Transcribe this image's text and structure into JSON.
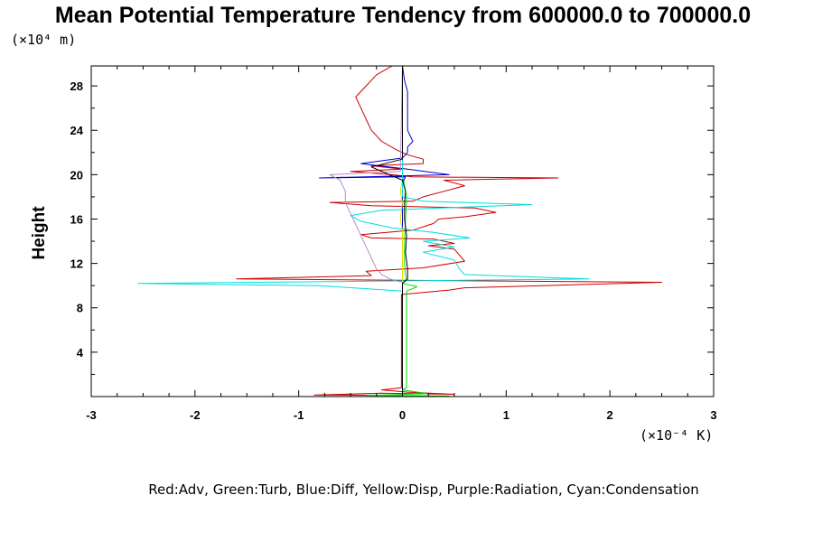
{
  "colors": {
    "advection": "#cc0000",
    "turbulence": "#00dd00",
    "diffusion": "#0000cc",
    "dissipation": "#dddd00",
    "radiation": "#bb88cc",
    "condensation": "#00dddd",
    "total": "#000000"
  },
  "chart_data": {
    "type": "line",
    "title": "Mean Potential Temperature Tendency from 600000.0 to 700000.0",
    "ylabel": "Height",
    "xlabel": "",
    "y_scale_label": "(×10⁴ m)",
    "x_scale_label": "(×10⁻⁴ K)",
    "legend_text": "Red:Adv, Green:Turb, Blue:Diff, Yellow:Disp, Purple:Radiation, Cyan:Condensation",
    "xlim": [
      -3,
      3
    ],
    "ylim": [
      0,
      29.8
    ],
    "x_ticks": [
      -3,
      -2,
      -1,
      0,
      1,
      2,
      3
    ],
    "x_tick_labels": [
      "-3",
      "-2",
      "-1",
      "0",
      "1",
      "2",
      "3"
    ],
    "y_ticks": [
      4,
      8,
      12,
      16,
      20,
      24,
      28
    ],
    "y_tick_labels": [
      "4",
      "8",
      "12",
      "16",
      "20",
      "24",
      "28"
    ],
    "grid": false,
    "series": [
      {
        "name": "Adv",
        "color_key": "advection",
        "points": [
          [
            0,
            0.1
          ],
          [
            -0.85,
            0.15
          ],
          [
            -0.2,
            0.3
          ],
          [
            0.5,
            0.2
          ],
          [
            0.05,
            0.4
          ],
          [
            -0.2,
            0.6
          ],
          [
            -0.01,
            0.8
          ],
          [
            -0.01,
            8.5
          ],
          [
            -0.01,
            9.2
          ],
          [
            0.45,
            9.6
          ],
          [
            0.6,
            9.8
          ],
          [
            2.5,
            10.3
          ],
          [
            -0.3,
            10.5
          ],
          [
            -1.6,
            10.6
          ],
          [
            -0.3,
            10.9
          ],
          [
            -0.35,
            11.3
          ],
          [
            0.2,
            11.6
          ],
          [
            0.6,
            12.2
          ],
          [
            0.5,
            13.3
          ],
          [
            0.25,
            13.6
          ],
          [
            0.5,
            13.8
          ],
          [
            0.3,
            14.2
          ],
          [
            -0.3,
            14.3
          ],
          [
            -0.4,
            14.6
          ],
          [
            0.1,
            15.0
          ],
          [
            0.3,
            15.6
          ],
          [
            0.35,
            16.0
          ],
          [
            0.6,
            16.2
          ],
          [
            0.9,
            16.6
          ],
          [
            0.7,
            17.0
          ],
          [
            -0.3,
            17.2
          ],
          [
            -0.7,
            17.5
          ],
          [
            0.1,
            17.6
          ],
          [
            0.2,
            18.0
          ],
          [
            0.4,
            18.5
          ],
          [
            0.6,
            19.0
          ],
          [
            0.4,
            19.5
          ],
          [
            1.5,
            19.7
          ],
          [
            0.1,
            19.8
          ],
          [
            -0.1,
            20.0
          ],
          [
            -0.5,
            20.3
          ],
          [
            0.0,
            20.5
          ],
          [
            -0.3,
            20.8
          ],
          [
            0.2,
            21.0
          ],
          [
            0.2,
            21.4
          ],
          [
            0.05,
            21.8
          ],
          [
            -0.05,
            22.2
          ],
          [
            -0.2,
            23.0
          ],
          [
            -0.3,
            24.0
          ],
          [
            -0.35,
            25.0
          ],
          [
            -0.4,
            26.0
          ],
          [
            -0.45,
            27.0
          ],
          [
            -0.35,
            28.0
          ],
          [
            -0.25,
            29.0
          ],
          [
            -0.1,
            29.8
          ]
        ]
      },
      {
        "name": "Turb",
        "color_key": "turbulence",
        "points": [
          [
            0.45,
            0.05
          ],
          [
            -0.35,
            0.1
          ],
          [
            0.25,
            0.25
          ],
          [
            0.0,
            0.6
          ],
          [
            0.04,
            0.8
          ],
          [
            0.04,
            8.5
          ],
          [
            0.04,
            9.5
          ],
          [
            0.14,
            9.9
          ],
          [
            0.0,
            10.2
          ],
          [
            0.04,
            10.5
          ],
          [
            0.03,
            11.0
          ],
          [
            0.02,
            12.0
          ],
          [
            0.02,
            14.0
          ],
          [
            0.03,
            16.0
          ],
          [
            0.04,
            18.0
          ],
          [
            0.0,
            20.0
          ],
          [
            0.0,
            29.8
          ]
        ]
      },
      {
        "name": "Diff",
        "color_key": "diffusion",
        "points": [
          [
            0.0,
            0.05
          ],
          [
            0.0,
            19.2
          ],
          [
            0.03,
            19.8
          ],
          [
            -0.8,
            19.7
          ],
          [
            0.45,
            20.0
          ],
          [
            0.05,
            20.5
          ],
          [
            -0.4,
            21.0
          ],
          [
            0.0,
            21.5
          ],
          [
            0.05,
            22.0
          ],
          [
            0.05,
            22.5
          ],
          [
            0.1,
            23.0
          ],
          [
            0.05,
            24.0
          ],
          [
            0.05,
            26.0
          ],
          [
            0.05,
            27.5
          ],
          [
            0.02,
            28.5
          ],
          [
            0.0,
            29.8
          ]
        ]
      },
      {
        "name": "Disp",
        "color_key": "dissipation",
        "points": [
          [
            0.0,
            0.05
          ],
          [
            0.0,
            15.0
          ],
          [
            -0.02,
            16.0
          ],
          [
            0.0,
            17.5
          ],
          [
            -0.02,
            18.5
          ],
          [
            0.0,
            19.5
          ],
          [
            0.0,
            29.8
          ]
        ]
      },
      {
        "name": "Radiation",
        "color_key": "radiation",
        "points": [
          [
            0.0,
            0.05
          ],
          [
            0.0,
            10.3
          ],
          [
            -0.12,
            10.6
          ],
          [
            -0.2,
            11.0
          ],
          [
            -0.25,
            11.5
          ],
          [
            -0.3,
            12.5
          ],
          [
            -0.35,
            13.5
          ],
          [
            -0.4,
            14.5
          ],
          [
            -0.45,
            15.5
          ],
          [
            -0.5,
            16.5
          ],
          [
            -0.55,
            17.5
          ],
          [
            -0.55,
            18.5
          ],
          [
            -0.6,
            19.5
          ],
          [
            -0.7,
            20.0
          ],
          [
            -0.02,
            20.3
          ],
          [
            0.0,
            29.8
          ]
        ]
      },
      {
        "name": "Condensation",
        "color_key": "condensation",
        "points": [
          [
            0.0,
            0.05
          ],
          [
            0.0,
            8.5
          ],
          [
            0.0,
            9.5
          ],
          [
            -0.8,
            10.0
          ],
          [
            -2.55,
            10.2
          ],
          [
            -0.3,
            10.4
          ],
          [
            1.8,
            10.6
          ],
          [
            0.6,
            11.0
          ],
          [
            0.55,
            11.5
          ],
          [
            0.5,
            12.3
          ],
          [
            0.2,
            13.0
          ],
          [
            0.5,
            13.5
          ],
          [
            0.2,
            14.0
          ],
          [
            0.65,
            14.3
          ],
          [
            0.3,
            14.8
          ],
          [
            -0.1,
            15.2
          ],
          [
            -0.4,
            15.8
          ],
          [
            -0.5,
            16.3
          ],
          [
            -0.2,
            16.8
          ],
          [
            1.25,
            17.3
          ],
          [
            0.2,
            17.6
          ],
          [
            0.0,
            18.0
          ],
          [
            0.0,
            29.8
          ]
        ]
      },
      {
        "name": "",
        "color_key": "total",
        "points": [
          [
            0.0,
            0.05
          ],
          [
            0.0,
            9.5
          ],
          [
            0.0,
            10.2
          ],
          [
            0.05,
            10.6
          ],
          [
            0.05,
            11.5
          ],
          [
            0.03,
            13.0
          ],
          [
            0.04,
            14.5
          ],
          [
            0.02,
            16.0
          ],
          [
            0.02,
            17.5
          ],
          [
            0.03,
            18.5
          ],
          [
            0.0,
            19.5
          ],
          [
            -0.3,
            20.7
          ],
          [
            0.0,
            21.4
          ],
          [
            0.0,
            29.8
          ]
        ]
      }
    ]
  }
}
